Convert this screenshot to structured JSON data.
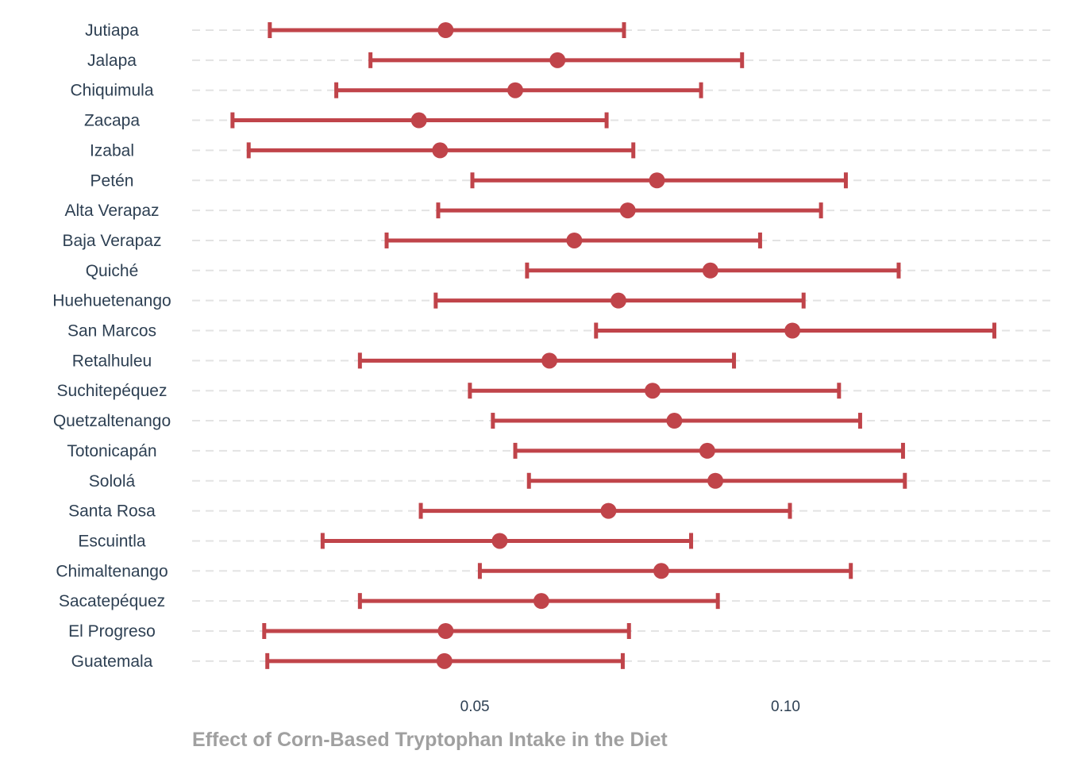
{
  "chart_data": {
    "type": "forest",
    "xlabel": "Effect of Corn-Based Tryptophan Intake in the Diet",
    "ylabel": "",
    "xticks": [
      0.05,
      0.1
    ],
    "xtick_labels": [
      "0.05",
      "0.10"
    ],
    "xlim": [
      0.0045,
      0.1435
    ],
    "grid": "horizontal dashed",
    "color": "#c0444a",
    "rows": [
      {
        "label": "Jutiapa",
        "estimate": 0.0453,
        "lower": 0.017,
        "upper": 0.074
      },
      {
        "label": "Jalapa",
        "estimate": 0.0633,
        "lower": 0.0332,
        "upper": 0.093
      },
      {
        "label": "Chiquimula",
        "estimate": 0.0565,
        "lower": 0.0277,
        "upper": 0.0864
      },
      {
        "label": "Zacapa",
        "estimate": 0.041,
        "lower": 0.011,
        "upper": 0.0712
      },
      {
        "label": "Izabal",
        "estimate": 0.0444,
        "lower": 0.0136,
        "upper": 0.0755
      },
      {
        "label": "Petén",
        "estimate": 0.0793,
        "lower": 0.0496,
        "upper": 0.1097
      },
      {
        "label": "Alta Verapaz",
        "estimate": 0.0746,
        "lower": 0.0441,
        "upper": 0.1057
      },
      {
        "label": "Baja Verapaz",
        "estimate": 0.066,
        "lower": 0.0358,
        "upper": 0.0959
      },
      {
        "label": "Quiché",
        "estimate": 0.0879,
        "lower": 0.0584,
        "upper": 0.1182
      },
      {
        "label": "Huehuetenango",
        "estimate": 0.0731,
        "lower": 0.0437,
        "upper": 0.1029
      },
      {
        "label": "San Marcos",
        "estimate": 0.1011,
        "lower": 0.0695,
        "upper": 0.1336
      },
      {
        "label": "Retalhuleu",
        "estimate": 0.062,
        "lower": 0.0315,
        "upper": 0.0917
      },
      {
        "label": "Suchitepéquez",
        "estimate": 0.0786,
        "lower": 0.0492,
        "upper": 0.1086
      },
      {
        "label": "Quetzaltenango",
        "estimate": 0.0821,
        "lower": 0.0529,
        "upper": 0.112
      },
      {
        "label": "Totonicapán",
        "estimate": 0.0874,
        "lower": 0.0565,
        "upper": 0.1189
      },
      {
        "label": "Sololá",
        "estimate": 0.0887,
        "lower": 0.0587,
        "upper": 0.1192
      },
      {
        "label": "Santa Rosa",
        "estimate": 0.0715,
        "lower": 0.0413,
        "upper": 0.1007
      },
      {
        "label": "Escuintla",
        "estimate": 0.054,
        "lower": 0.0255,
        "upper": 0.0848
      },
      {
        "label": "Chimaltenango",
        "estimate": 0.08,
        "lower": 0.0508,
        "upper": 0.1105
      },
      {
        "label": "Sacatepéquez",
        "estimate": 0.0607,
        "lower": 0.0315,
        "upper": 0.0891
      },
      {
        "label": "El Progreso",
        "estimate": 0.0453,
        "lower": 0.0161,
        "upper": 0.0748
      },
      {
        "label": "Guatemala",
        "estimate": 0.0451,
        "lower": 0.0166,
        "upper": 0.0738
      }
    ]
  }
}
